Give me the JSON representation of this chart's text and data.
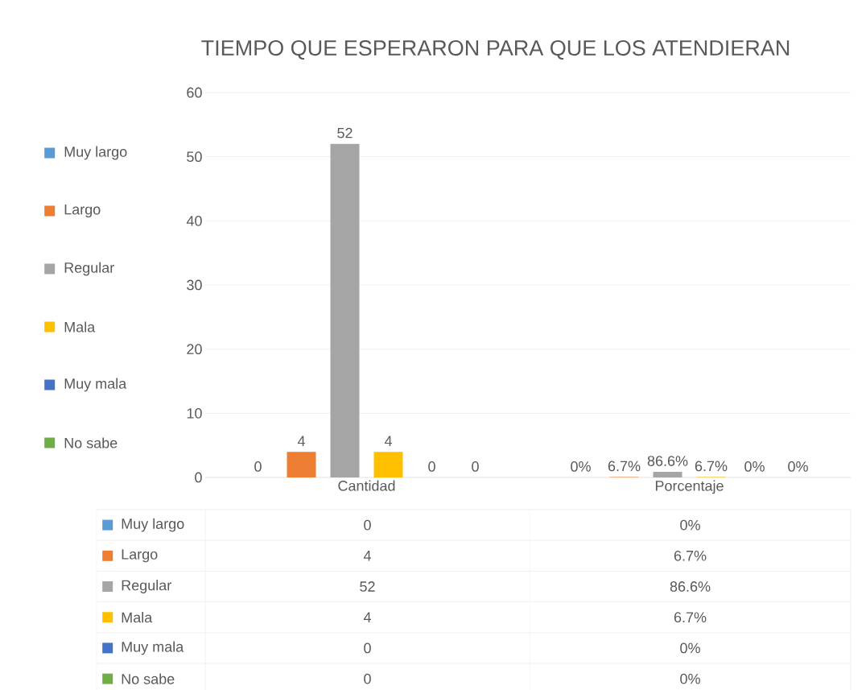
{
  "chart_data": {
    "type": "bar",
    "title": "TIEMPO QUE ESPERARON PARA QUE LOS ATENDIERAN",
    "categories": [
      "Cantidad",
      "Porcentaje"
    ],
    "series": [
      {
        "name": "Muy largo",
        "color": "#5b9bd5",
        "values": [
          0,
          0
        ],
        "value_labels": [
          "0",
          "0%"
        ]
      },
      {
        "name": "Largo",
        "color": "#ed7d31",
        "values": [
          4,
          0.067
        ],
        "value_labels": [
          "4",
          "6.7%"
        ]
      },
      {
        "name": "Regular",
        "color": "#a5a5a5",
        "values": [
          52,
          0.866
        ],
        "value_labels": [
          "52",
          "86.6%"
        ]
      },
      {
        "name": "Mala",
        "color": "#ffc000",
        "values": [
          4,
          0.067
        ],
        "value_labels": [
          "4",
          "6.7%"
        ]
      },
      {
        "name": "Muy mala",
        "color": "#4472c4",
        "values": [
          0,
          0
        ],
        "value_labels": [
          "0",
          "0%"
        ]
      },
      {
        "name": "No sabe",
        "color": "#70ad47",
        "values": [
          0,
          0
        ],
        "value_labels": [
          "0",
          "0%"
        ]
      }
    ],
    "ylim": [
      0,
      60
    ],
    "yticks": [
      0,
      10,
      20,
      30,
      40,
      50,
      60
    ],
    "grid": "y",
    "legend": "left"
  }
}
